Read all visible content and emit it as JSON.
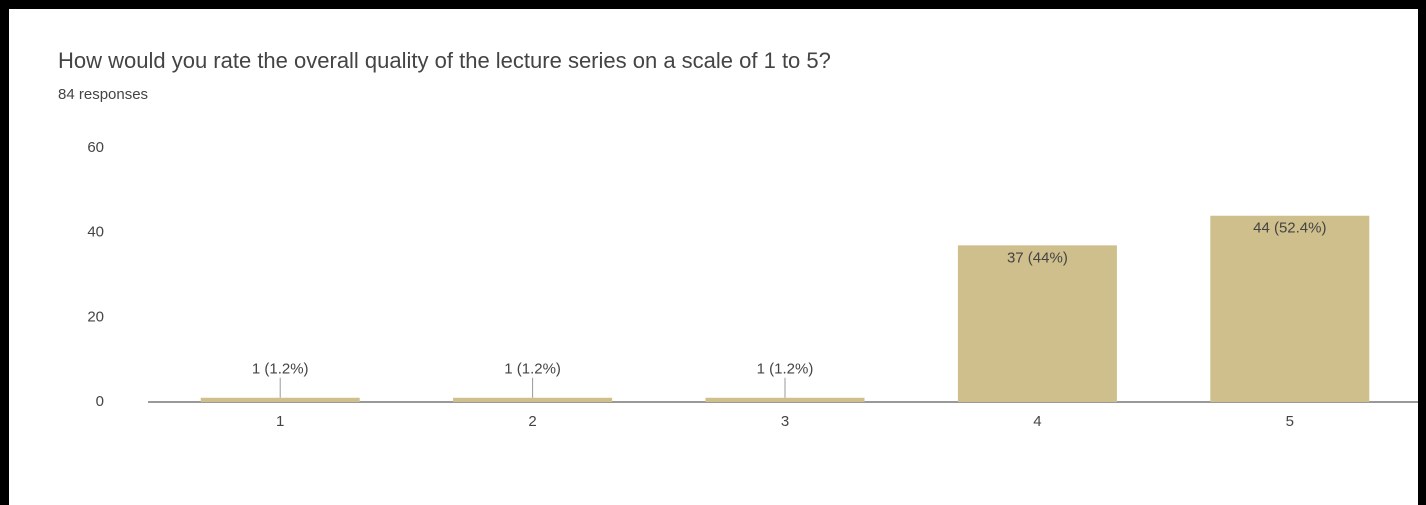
{
  "chart_data": {
    "type": "bar",
    "title": "How would you rate the overall quality of the lecture series on a scale of 1 to 5?",
    "subtitle": "84 responses",
    "categories": [
      "1",
      "2",
      "3",
      "4",
      "5"
    ],
    "values": [
      1,
      1,
      1,
      37,
      44
    ],
    "value_labels": [
      "1 (1.2%)",
      "1 (1.2%)",
      "1 (1.2%)",
      "37 (44%)",
      "44 (52.4%)"
    ],
    "color": "#cfbf8c",
    "ylim": [
      0,
      60
    ],
    "yticks": [
      0,
      20,
      40,
      60
    ],
    "grid": false
  }
}
